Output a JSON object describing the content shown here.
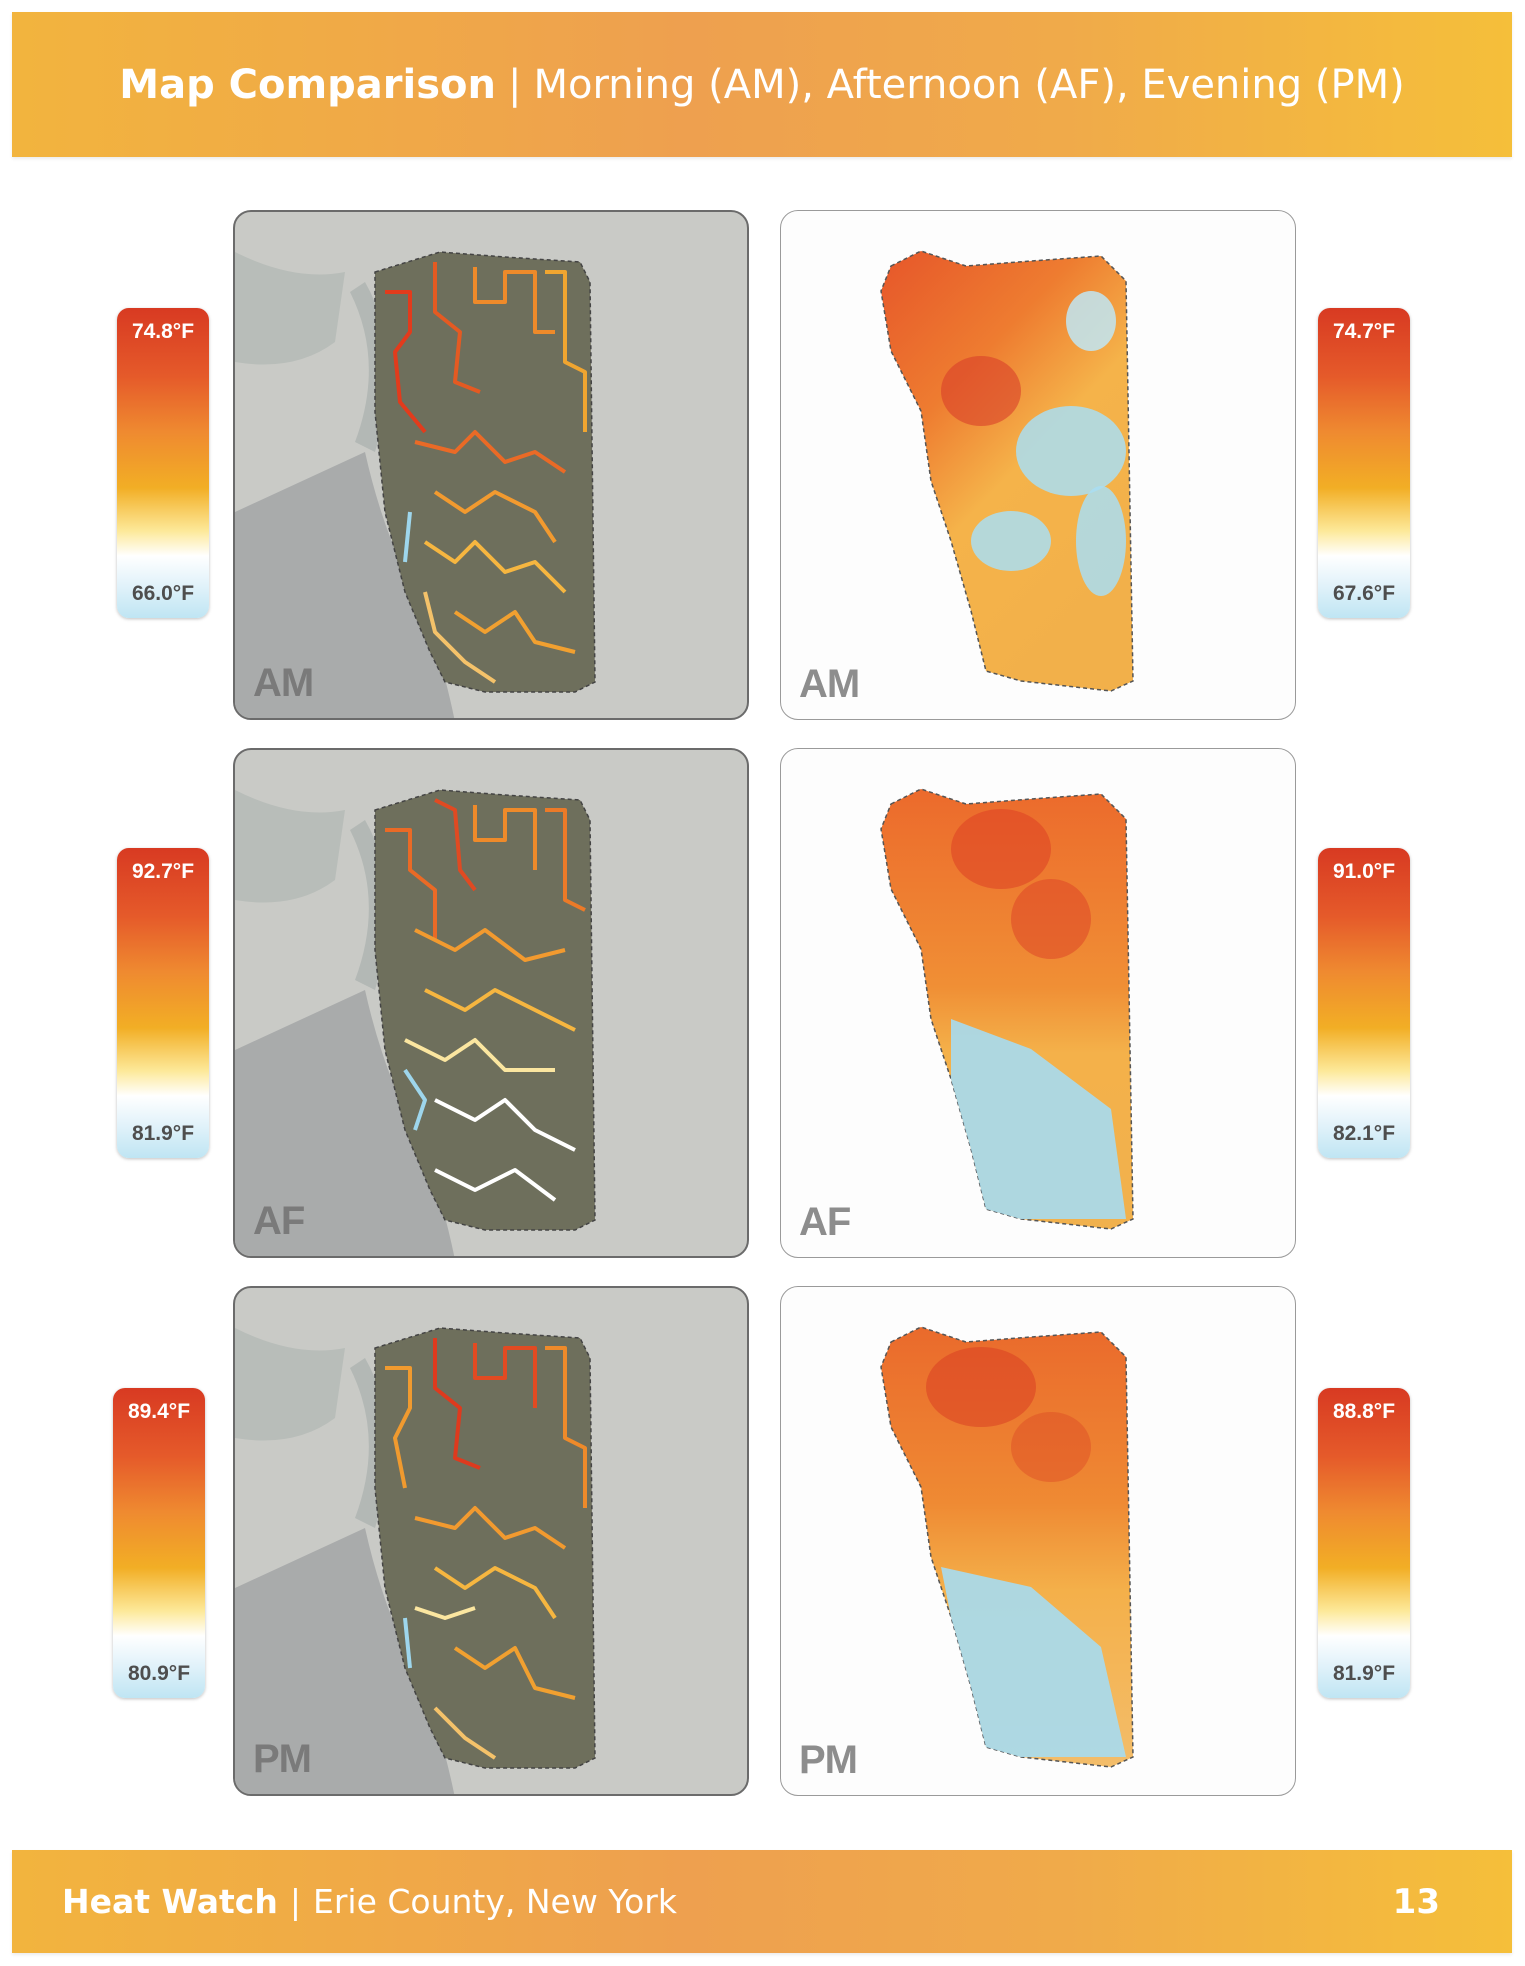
{
  "header": {
    "title_bold": "Map Comparison",
    "separator": "|",
    "title_rest": "Morning (AM), Afternoon (AF), Evening (PM)"
  },
  "rows": [
    {
      "period": "AM",
      "left_legend": {
        "high": "74.8°F",
        "low": "66.0°F"
      },
      "right_legend": {
        "high": "74.7°F",
        "low": "67.6°F"
      }
    },
    {
      "period": "AF",
      "left_legend": {
        "high": "92.7°F",
        "low": "81.9°F"
      },
      "right_legend": {
        "high": "91.0°F",
        "low": "82.1°F"
      }
    },
    {
      "period": "PM",
      "left_legend": {
        "high": "89.4°F",
        "low": "80.9°F"
      },
      "right_legend": {
        "high": "88.8°F",
        "low": "81.9°F"
      }
    }
  ],
  "footer": {
    "brand": "Heat Watch",
    "separator": "|",
    "location": "Erie County, New York",
    "page_number": "13"
  },
  "colors": {
    "banner": "#eea04f",
    "hot": "#d83a22",
    "warm": "#ef8a30",
    "mild": "#f2ae25",
    "cool": "#bfe5f3"
  }
}
